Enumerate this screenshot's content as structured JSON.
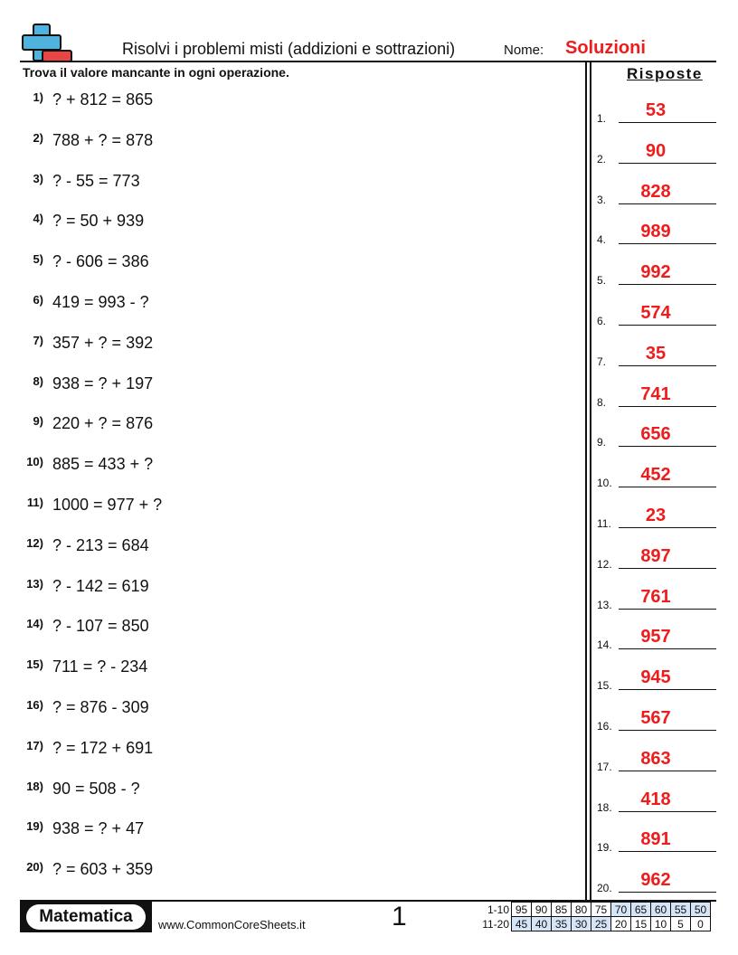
{
  "header": {
    "title": "Risolvi i problemi misti (addizioni e sottrazioni)",
    "name_label": "Nome:",
    "name_value": "Soluzioni",
    "logo_icon": "plus-minus-icon"
  },
  "instructions": "Trova il valore mancante in ogni operazione.",
  "answers_title": "Risposte",
  "problems": [
    {
      "n": "1)",
      "text": "? + 812 = 865"
    },
    {
      "n": "2)",
      "text": "788 + ? = 878"
    },
    {
      "n": "3)",
      "text": "? - 55 = 773"
    },
    {
      "n": "4)",
      "text": "? = 50 + 939"
    },
    {
      "n": "5)",
      "text": "? - 606 = 386"
    },
    {
      "n": "6)",
      "text": "419 = 993 - ?"
    },
    {
      "n": "7)",
      "text": "357 + ? = 392"
    },
    {
      "n": "8)",
      "text": "938 = ? + 197"
    },
    {
      "n": "9)",
      "text": "220 + ? = 876"
    },
    {
      "n": "10)",
      "text": "885 = 433 + ?"
    },
    {
      "n": "11)",
      "text": "1000 = 977 + ?"
    },
    {
      "n": "12)",
      "text": "? - 213 = 684"
    },
    {
      "n": "13)",
      "text": "? - 142 = 619"
    },
    {
      "n": "14)",
      "text": "? - 107 = 850"
    },
    {
      "n": "15)",
      "text": "711 = ? - 234"
    },
    {
      "n": "16)",
      "text": "? = 876 - 309"
    },
    {
      "n": "17)",
      "text": "? = 172 + 691"
    },
    {
      "n": "18)",
      "text": "90 = 508 - ?"
    },
    {
      "n": "19)",
      "text": "938 = ? + 47"
    },
    {
      "n": "20)",
      "text": "? = 603 + 359"
    }
  ],
  "answers": [
    {
      "n": "1.",
      "v": "53"
    },
    {
      "n": "2.",
      "v": "90"
    },
    {
      "n": "3.",
      "v": "828"
    },
    {
      "n": "4.",
      "v": "989"
    },
    {
      "n": "5.",
      "v": "992"
    },
    {
      "n": "6.",
      "v": "574"
    },
    {
      "n": "7.",
      "v": "35"
    },
    {
      "n": "8.",
      "v": "741"
    },
    {
      "n": "9.",
      "v": "656"
    },
    {
      "n": "10.",
      "v": "452"
    },
    {
      "n": "11.",
      "v": "23"
    },
    {
      "n": "12.",
      "v": "897"
    },
    {
      "n": "13.",
      "v": "761"
    },
    {
      "n": "14.",
      "v": "957"
    },
    {
      "n": "15.",
      "v": "945"
    },
    {
      "n": "16.",
      "v": "567"
    },
    {
      "n": "17.",
      "v": "863"
    },
    {
      "n": "18.",
      "v": "418"
    },
    {
      "n": "19.",
      "v": "891"
    },
    {
      "n": "20.",
      "v": "962"
    }
  ],
  "footer": {
    "badge": "Matematica",
    "url": "www.CommonCoreSheets.it",
    "page": "1",
    "score_rows": [
      {
        "label": "1-10",
        "values": [
          "95",
          "90",
          "85",
          "80",
          "75",
          "70",
          "65",
          "60",
          "55",
          "50"
        ]
      },
      {
        "label": "11-20",
        "values": [
          "45",
          "40",
          "35",
          "30",
          "25",
          "20",
          "15",
          "10",
          "5",
          "0"
        ]
      }
    ]
  },
  "colors": {
    "answer": "#ee1c1c",
    "highlight": "#d6e4f7",
    "logo_plus": "#4fb3de",
    "logo_minus": "#e84545"
  }
}
